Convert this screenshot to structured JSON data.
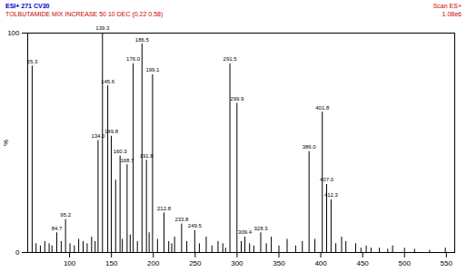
{
  "chart_data": {
    "type": "bar",
    "title": "ESI+ 271 CV30",
    "subtitle": "TOLBUTAMIDE MIX INCREASE 50 10 DEC (0.22 0.58)",
    "annotations": [
      "Scan ES+",
      "1.08e6"
    ],
    "y_label": "%",
    "color": "#000000",
    "x": [
      55.3,
      60.0,
      65.1,
      70.4,
      75.6,
      79.0,
      84.7,
      90.0,
      95.2,
      100.5,
      105.7,
      110.9,
      116.2,
      121.0,
      126.3,
      130.5,
      134.0,
      139.3,
      145.6,
      149.8,
      155.0,
      160.3,
      163.0,
      168.7,
      172.4,
      176.0,
      181.0,
      186.5,
      191.8,
      195.0,
      199.1,
      205.0,
      212.8,
      218.4,
      222.0,
      225.4,
      233.8,
      240.0,
      249.5,
      255.0,
      263.2,
      270.0,
      277.3,
      283.0,
      286.3,
      291.5,
      299.9,
      305.0,
      309.4,
      315.0,
      320.0,
      328.3,
      335.0,
      340.9,
      350.0,
      359.8,
      370.0,
      378.0,
      386.0,
      393.0,
      401.8,
      407.0,
      412.3,
      418.0,
      424.9,
      430.0,
      441.7,
      448.0,
      454.3,
      460.0,
      470.0,
      480.0,
      485.8,
      500.0,
      512.0,
      530.0,
      548.8
    ],
    "values": [
      85,
      4,
      3,
      5,
      4,
      3,
      9,
      5,
      15,
      4,
      3,
      6,
      5,
      4,
      7,
      5,
      51,
      100,
      76,
      53,
      33,
      44,
      6,
      40,
      8,
      86,
      5,
      95,
      42,
      9,
      81,
      6,
      18,
      5,
      4,
      7,
      13,
      5,
      10,
      4,
      7,
      3,
      5,
      4,
      2,
      86,
      68,
      5,
      7,
      4,
      3,
      9,
      4,
      7,
      3,
      6,
      3,
      5,
      46,
      6,
      64,
      31,
      24,
      4,
      7,
      5,
      4,
      2,
      3,
      2,
      2,
      1.5,
      3,
      2,
      1.5,
      1,
      2
    ],
    "peak_labels": [
      "55.3",
      null,
      null,
      null,
      null,
      null,
      "84.7",
      null,
      "95.2",
      null,
      null,
      null,
      null,
      null,
      null,
      null,
      "134.0",
      "139.3",
      "145.6",
      "149.8",
      null,
      "160.3",
      null,
      "168.7",
      null,
      "176.0",
      null,
      "186.5",
      "191.8",
      null,
      "199.1",
      null,
      "212.8",
      null,
      null,
      null,
      "233.8",
      null,
      "249.5",
      null,
      null,
      null,
      null,
      null,
      null,
      "291.5",
      "299.9",
      null,
      "309.4",
      null,
      null,
      "328.3",
      null,
      null,
      null,
      null,
      null,
      null,
      "386.0",
      null,
      "401.8",
      "407.0",
      "412.3",
      null,
      null,
      null,
      null,
      null,
      null,
      null,
      null,
      null,
      null,
      null,
      null,
      null,
      null
    ],
    "xlim": [
      50,
      560
    ],
    "xticks": [
      100,
      150,
      200,
      250,
      300,
      350,
      400,
      450,
      500,
      550
    ],
    "ylim": [
      0,
      100
    ],
    "yticks": [
      0,
      100
    ]
  }
}
